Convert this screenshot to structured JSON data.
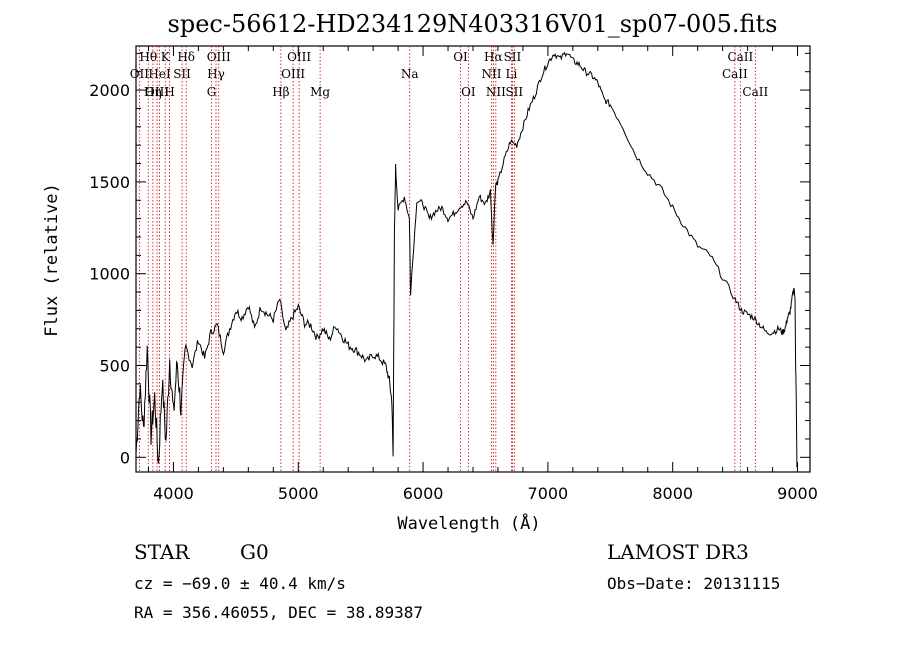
{
  "chart_data": {
    "type": "line",
    "title": "spec-56612-HD234129N403316V01_sp07-005.fits",
    "xlabel": "Wavelength (Å)",
    "ylabel": "Flux (relative)",
    "xlim": [
      3700,
      9100
    ],
    "ylim": [
      -80,
      2240
    ],
    "xticks": [
      4000,
      5000,
      6000,
      7000,
      8000,
      9000
    ],
    "yticks": [
      0,
      500,
      1000,
      1500,
      2000
    ],
    "line_color": "#000000",
    "marker_color": "#cc0000",
    "spectrum": {
      "x": [
        3700,
        3730,
        3760,
        3790,
        3820,
        3850,
        3880,
        3910,
        3940,
        3970,
        4000,
        4030,
        4060,
        4100,
        4150,
        4200,
        4250,
        4300,
        4350,
        4400,
        4450,
        4500,
        4550,
        4600,
        4650,
        4700,
        4750,
        4800,
        4850,
        4900,
        4950,
        5000,
        5050,
        5100,
        5150,
        5200,
        5250,
        5300,
        5350,
        5400,
        5450,
        5500,
        5550,
        5600,
        5650,
        5700,
        5730,
        5750,
        5760,
        5770,
        5780,
        5800,
        5850,
        5890,
        5900,
        5950,
        6000,
        6050,
        6100,
        6150,
        6200,
        6250,
        6300,
        6350,
        6400,
        6450,
        6500,
        6540,
        6560,
        6580,
        6600,
        6650,
        6700,
        6750,
        6800,
        6850,
        6900,
        6950,
        7000,
        7050,
        7100,
        7150,
        7200,
        7250,
        7300,
        7350,
        7400,
        7450,
        7500,
        7600,
        7700,
        7800,
        7900,
        8000,
        8100,
        8200,
        8300,
        8400,
        8500,
        8550,
        8600,
        8650,
        8700,
        8750,
        8800,
        8850,
        8880,
        8900,
        8920,
        8940,
        8960,
        8970,
        8980,
        8985,
        8990,
        8995,
        9000
      ],
      "y": [
        20,
        380,
        150,
        600,
        120,
        330,
        -40,
        420,
        80,
        540,
        230,
        520,
        260,
        600,
        500,
        640,
        540,
        680,
        720,
        580,
        700,
        800,
        760,
        830,
        700,
        820,
        780,
        750,
        860,
        680,
        760,
        820,
        730,
        720,
        650,
        700,
        640,
        720,
        660,
        610,
        590,
        560,
        520,
        560,
        540,
        500,
        420,
        300,
        0,
        1200,
        1580,
        1350,
        1420,
        1300,
        900,
        1400,
        1380,
        1300,
        1340,
        1360,
        1300,
        1330,
        1370,
        1390,
        1300,
        1420,
        1380,
        1450,
        1150,
        1480,
        1500,
        1620,
        1720,
        1700,
        1800,
        1900,
        1980,
        2080,
        2150,
        2200,
        2170,
        2210,
        2160,
        2140,
        2100,
        2080,
        2040,
        1950,
        1920,
        1800,
        1650,
        1550,
        1470,
        1360,
        1250,
        1150,
        1100,
        980,
        860,
        800,
        780,
        760,
        720,
        680,
        680,
        700,
        680,
        700,
        760,
        790,
        880,
        920,
        880,
        500,
        300,
        -40,
        -60
      ]
    },
    "lines": [
      {
        "name": "Hθ",
        "wl": 3798,
        "row": 1
      },
      {
        "name": "OII",
        "wl": 3727,
        "row": 2
      },
      {
        "name": "OIII",
        "wl": 3869,
        "row": 3
      },
      {
        "name": "Hη",
        "wl": 3835,
        "row": 3
      },
      {
        "name": "HeI",
        "wl": 3889,
        "row": 2
      },
      {
        "name": "K",
        "wl": 3934,
        "row": 1
      },
      {
        "name": "H",
        "wl": 3969,
        "row": 3
      },
      {
        "name": "SII",
        "wl": 4069,
        "row": 2
      },
      {
        "name": "Hδ",
        "wl": 4102,
        "row": 1
      },
      {
        "name": "OIII",
        "wl": 4363,
        "row": 1
      },
      {
        "name": "Hγ",
        "wl": 4341,
        "row": 2
      },
      {
        "name": "G",
        "wl": 4305,
        "row": 3
      },
      {
        "name": "Hβ",
        "wl": 4861,
        "row": 3
      },
      {
        "name": "OIII",
        "wl": 4959,
        "row": 2
      },
      {
        "name": "OIII",
        "wl": 5007,
        "row": 1
      },
      {
        "name": "Mg",
        "wl": 5175,
        "row": 3
      },
      {
        "name": "Na",
        "wl": 5893,
        "row": 2
      },
      {
        "name": "OI",
        "wl": 6300,
        "row": 1
      },
      {
        "name": "OI",
        "wl": 6363,
        "row": 3
      },
      {
        "name": "Hα",
        "wl": 6563,
        "row": 1
      },
      {
        "name": "NII",
        "wl": 6548,
        "row": 2
      },
      {
        "name": "NII",
        "wl": 6583,
        "row": 3
      },
      {
        "name": "SII",
        "wl": 6716,
        "row": 1
      },
      {
        "name": "Li",
        "wl": 6708,
        "row": 2
      },
      {
        "name": "SII",
        "wl": 6731,
        "row": 3
      },
      {
        "name": "CaII",
        "wl": 8542,
        "row": 1
      },
      {
        "name": "CaII",
        "wl": 8498,
        "row": 2
      },
      {
        "name": "CaII",
        "wl": 8662,
        "row": 3
      }
    ]
  },
  "info": {
    "object_class": "STAR",
    "subclass": "G0",
    "survey": "LAMOST DR3",
    "redshift": "cz = −69.0 ± 40.4 km/s",
    "obs_date": "Obs−Date: 20131115",
    "coords": "RA = 356.46055, DEC =  38.89387"
  }
}
